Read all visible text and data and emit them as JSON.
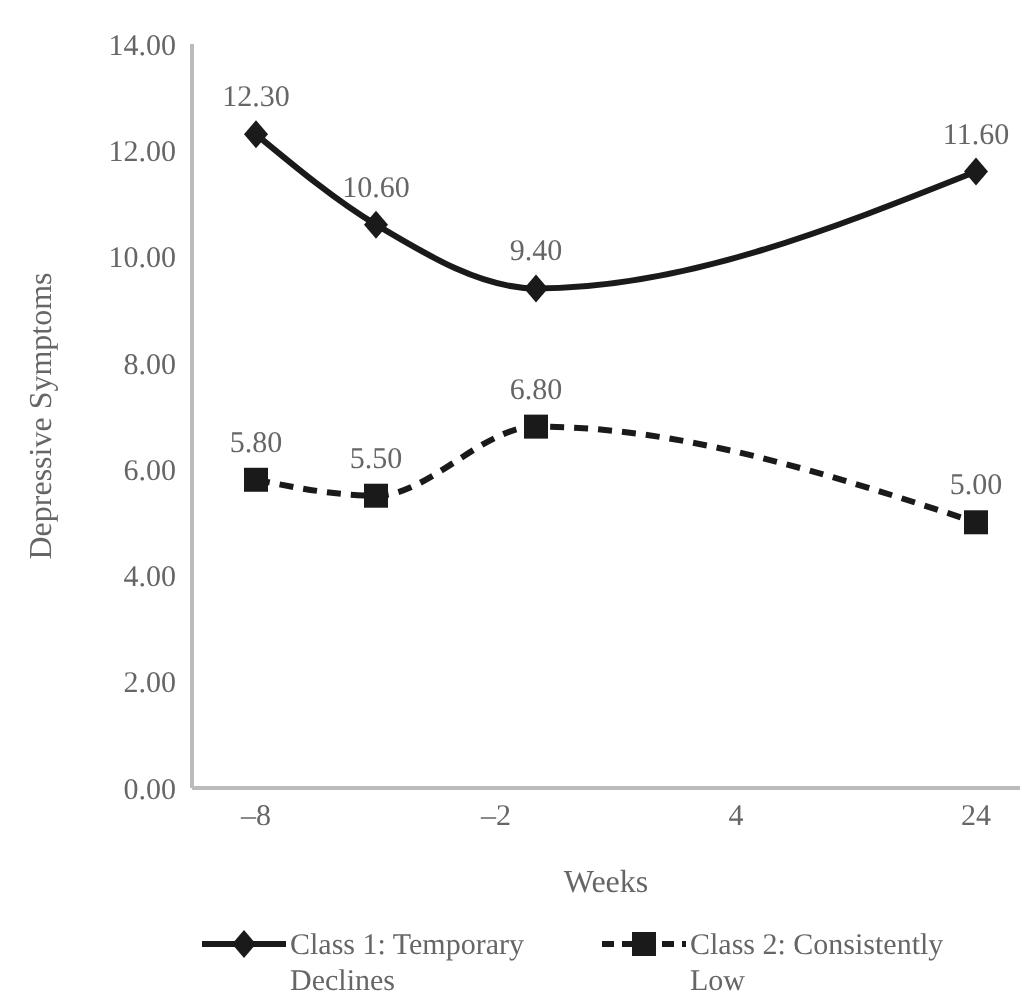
{
  "chart_data": {
    "type": "line",
    "xlabel": "Weeks",
    "ylabel": "Depressive Symptoms",
    "categories": [
      "–8",
      null,
      null,
      null,
      null,
      null,
      "–2",
      null,
      null,
      null,
      null,
      null,
      "4",
      null,
      null,
      null,
      null,
      null,
      "24"
    ],
    "ylim": [
      0,
      14
    ],
    "yticks": [
      {
        "value": 0,
        "label": "0.00"
      },
      {
        "value": 2,
        "label": "2.00"
      },
      {
        "value": 4,
        "label": "4.00"
      },
      {
        "value": 6,
        "label": "6.00"
      },
      {
        "value": 8,
        "label": "8.00"
      },
      {
        "value": 10,
        "label": "10.00"
      },
      {
        "value": 12,
        "label": "12.00"
      },
      {
        "value": 14,
        "label": "14.00"
      }
    ],
    "series": [
      {
        "name": "Class 1: Temporary Declines",
        "color": "#1a1a1a",
        "values": [
          12.3,
          null,
          null,
          10.6,
          null,
          null,
          null,
          9.4,
          null,
          null,
          null,
          null,
          null,
          null,
          null,
          null,
          null,
          null,
          11.6
        ],
        "value_labels": [
          "12.30",
          null,
          null,
          "10.60",
          null,
          null,
          null,
          "9.40",
          null,
          null,
          null,
          null,
          null,
          null,
          null,
          null,
          null,
          null,
          "11.60"
        ],
        "marker": "diamond",
        "line_style": "solid"
      },
      {
        "name": "Class 2: Consistently Low",
        "color": "#1a1a1a",
        "values": [
          5.8,
          null,
          null,
          5.5,
          null,
          null,
          null,
          6.8,
          null,
          null,
          null,
          null,
          null,
          null,
          null,
          null,
          null,
          null,
          5.0
        ],
        "value_labels": [
          "5.80",
          null,
          null,
          "5.50",
          null,
          null,
          null,
          "6.80",
          null,
          null,
          null,
          null,
          null,
          null,
          null,
          null,
          null,
          null,
          "5.00"
        ],
        "marker": "square",
        "line_style": "dashed"
      }
    ],
    "grid": false,
    "legend": "bottom"
  }
}
